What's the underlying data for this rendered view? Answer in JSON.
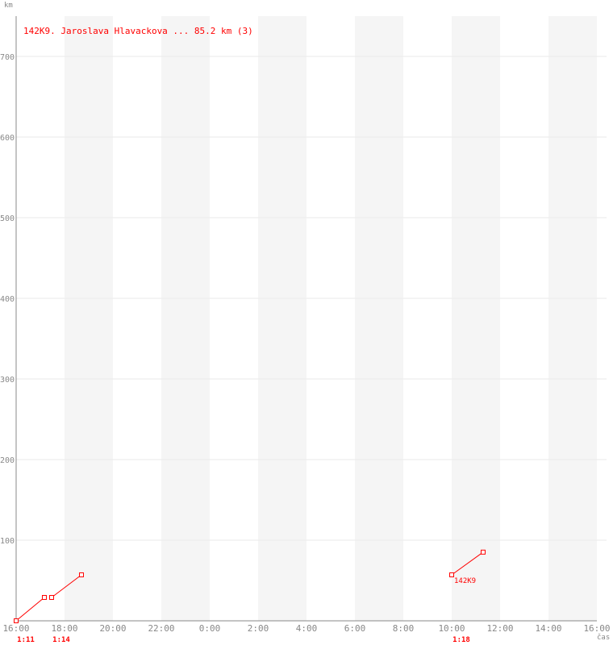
{
  "chart_data": {
    "type": "line",
    "title": "142K9. Jaroslava Hlavackova ... 85.2 km (3)",
    "ylabel": "km",
    "xlabel": "čas",
    "ylim": [
      0,
      750
    ],
    "yticks": [
      100,
      200,
      300,
      400,
      500,
      600,
      700
    ],
    "xticks": [
      "16:00",
      "18:00",
      "20:00",
      "22:00",
      "0:00",
      "2:00",
      "4:00",
      "6:00",
      "8:00",
      "10:00",
      "12:00",
      "14:00",
      "16:00"
    ],
    "xrange": [
      "16:00",
      "16:00 (+1 day)"
    ],
    "shaded_bands": [
      [
        "18:00",
        "20:00"
      ],
      [
        "22:00",
        "0:00"
      ],
      [
        "2:00",
        "4:00"
      ],
      [
        "6:00",
        "8:00"
      ],
      [
        "10:00",
        "12:00"
      ],
      [
        "14:00",
        "16:00"
      ]
    ],
    "grid": true,
    "series_color": "#ff0000",
    "segments": [
      {
        "duration_label": "1:11",
        "points": [
          {
            "day": 0,
            "time": "16:00",
            "km": 0
          },
          {
            "day": 0,
            "time": "17:10",
            "km": 29
          }
        ]
      },
      {
        "duration_label": "1:14",
        "points": [
          {
            "day": 0,
            "time": "17:28",
            "km": 29
          },
          {
            "day": 0,
            "time": "18:42",
            "km": 57
          }
        ]
      },
      {
        "duration_label": "1:18",
        "end_label": "142K9",
        "points": [
          {
            "day": 1,
            "time": "10:00",
            "km": 57
          },
          {
            "day": 1,
            "time": "11:18",
            "km": 85.2
          }
        ]
      }
    ]
  }
}
